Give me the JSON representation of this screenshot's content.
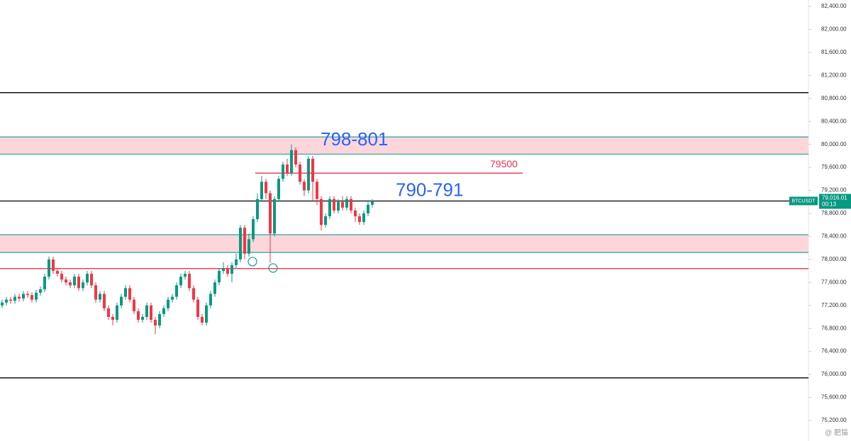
{
  "chart_data": {
    "type": "candlestick",
    "symbol": "BTCUSDT",
    "last_price": 79016.01,
    "last_price_label": "79,016.01",
    "countdown": "00:13",
    "up_color": "#089981",
    "down_color": "#f23645",
    "ylim": [
      74842,
      82511
    ],
    "yticks": [
      {
        "value": 75200,
        "label": "75,200.00"
      },
      {
        "value": 75600,
        "label": "75,600.00"
      },
      {
        "value": 76000,
        "label": "76,000.00"
      },
      {
        "value": 76400,
        "label": "76,400.00"
      },
      {
        "value": 76800,
        "label": "76,800.00"
      },
      {
        "value": 77200,
        "label": "77,200.00"
      },
      {
        "value": 77600,
        "label": "77,600.00"
      },
      {
        "value": 78000,
        "label": "78,000.00"
      },
      {
        "value": 78400,
        "label": "78,400.00"
      },
      {
        "value": 78800,
        "label": "78,800.00"
      },
      {
        "value": 79200,
        "label": "79,200.00"
      },
      {
        "value": 79600,
        "label": "79,600.00"
      },
      {
        "value": 80000,
        "label": "80,000.00"
      },
      {
        "value": 80400,
        "label": "80,400.00"
      },
      {
        "value": 80800,
        "label": "80,800.00"
      },
      {
        "value": 81200,
        "label": "81,200.00"
      },
      {
        "value": 81600,
        "label": "81,600.00"
      },
      {
        "value": 82000,
        "label": "82,000.00"
      },
      {
        "value": 82400,
        "label": "82,400.00"
      }
    ],
    "open": [
      77200,
      77250,
      77300,
      77280,
      77350,
      77320,
      77400,
      77380,
      77300,
      77420,
      77480,
      77700,
      78000,
      77800,
      77750,
      77650,
      77600,
      77550,
      77700,
      77500,
      77600,
      77750,
      77550,
      77300,
      77400,
      77150,
      77000,
      76950,
      77200,
      77350,
      77500,
      77300,
      77100,
      76950,
      77000,
      77200,
      76950,
      76850,
      77050,
      77150,
      77300,
      77350,
      77550,
      77700,
      77750,
      77500,
      77300,
      77000,
      76900,
      77200,
      77400,
      77600,
      77800,
      77850,
      77750,
      77900,
      78000,
      78550,
      78100,
      78350,
      78700,
      79050,
      79350,
      79150,
      78450,
      79050,
      79400,
      79650,
      79500,
      79900,
      79650,
      79350,
      79200,
      79750,
      79350,
      79050,
      78600,
      78750,
      79050,
      78850,
      79000,
      78900,
      79050,
      78850,
      78750,
      78650,
      78800,
      78950
    ],
    "high": [
      77300,
      77350,
      77350,
      77400,
      77400,
      77450,
      77450,
      77430,
      77470,
      77530,
      77750,
      78050,
      78050,
      77850,
      77800,
      77700,
      77650,
      77750,
      77750,
      77650,
      77800,
      77800,
      77600,
      77450,
      77450,
      77200,
      77050,
      77250,
      77400,
      77550,
      77550,
      77350,
      77150,
      77050,
      77250,
      77250,
      77000,
      77100,
      77200,
      77350,
      77400,
      77600,
      77750,
      77800,
      77800,
      77550,
      77350,
      77050,
      77250,
      77450,
      77650,
      77850,
      77950,
      77900,
      77950,
      78100,
      78600,
      78600,
      78450,
      78750,
      79150,
      79450,
      79400,
      79200,
      79100,
      79450,
      79700,
      79750,
      80000,
      79950,
      79700,
      79400,
      79800,
      79800,
      79400,
      79100,
      78800,
      79100,
      79100,
      79050,
      79100,
      79100,
      79100,
      78900,
      78800,
      78850,
      79000,
      79050
    ],
    "low": [
      77150,
      77200,
      77230,
      77230,
      77270,
      77270,
      77330,
      77250,
      77250,
      77370,
      77430,
      77650,
      77750,
      77700,
      77600,
      77550,
      77500,
      77500,
      77450,
      77450,
      77550,
      77500,
      77250,
      77250,
      77100,
      76950,
      76850,
      76900,
      77150,
      77300,
      77250,
      77050,
      76900,
      76900,
      76950,
      76900,
      76700,
      76800,
      77000,
      77100,
      77250,
      77300,
      77500,
      77650,
      77450,
      77250,
      76950,
      76850,
      76850,
      77150,
      77350,
      77550,
      77750,
      77700,
      77600,
      77850,
      77950,
      78000,
      78050,
      78300,
      78650,
      79000,
      79050,
      77940,
      78400,
      79000,
      79350,
      79450,
      79450,
      79600,
      79300,
      79100,
      79150,
      79000,
      78950,
      78500,
      78550,
      78700,
      78800,
      78800,
      78850,
      78850,
      78800,
      78650,
      78600,
      78600,
      78750,
      78900
    ],
    "close": [
      77250,
      77300,
      77280,
      77350,
      77320,
      77400,
      77380,
      77300,
      77420,
      77480,
      77700,
      78000,
      77800,
      77750,
      77650,
      77600,
      77550,
      77700,
      77500,
      77600,
      77750,
      77550,
      77300,
      77400,
      77150,
      77000,
      76950,
      77200,
      77350,
      77500,
      77300,
      77100,
      76950,
      77000,
      77200,
      76950,
      76850,
      77050,
      77150,
      77300,
      77350,
      77550,
      77700,
      77750,
      77500,
      77300,
      77000,
      76900,
      77200,
      77400,
      77600,
      77800,
      77850,
      77750,
      77900,
      78000,
      78550,
      78100,
      78350,
      78700,
      79050,
      79350,
      79150,
      78450,
      79050,
      79400,
      79650,
      79500,
      79900,
      79650,
      79350,
      79200,
      79750,
      79350,
      79050,
      78600,
      78750,
      79050,
      78850,
      79000,
      78900,
      79050,
      78850,
      78750,
      78650,
      78800,
      78950,
      79016.01
    ],
    "levels": [
      {
        "value": 80900,
        "color": "#000000"
      },
      {
        "value": 75940,
        "color": "#000000"
      },
      {
        "value": 77840,
        "color": "#e0344a"
      },
      {
        "value": 79500,
        "color": "#e0344a"
      }
    ],
    "zones": [
      {
        "from": 79830,
        "to": 80130
      },
      {
        "from": 78120,
        "to": 78430
      }
    ],
    "annotations": [
      "798-801",
      "790-791"
    ],
    "watermark": "@ 肥猫"
  }
}
